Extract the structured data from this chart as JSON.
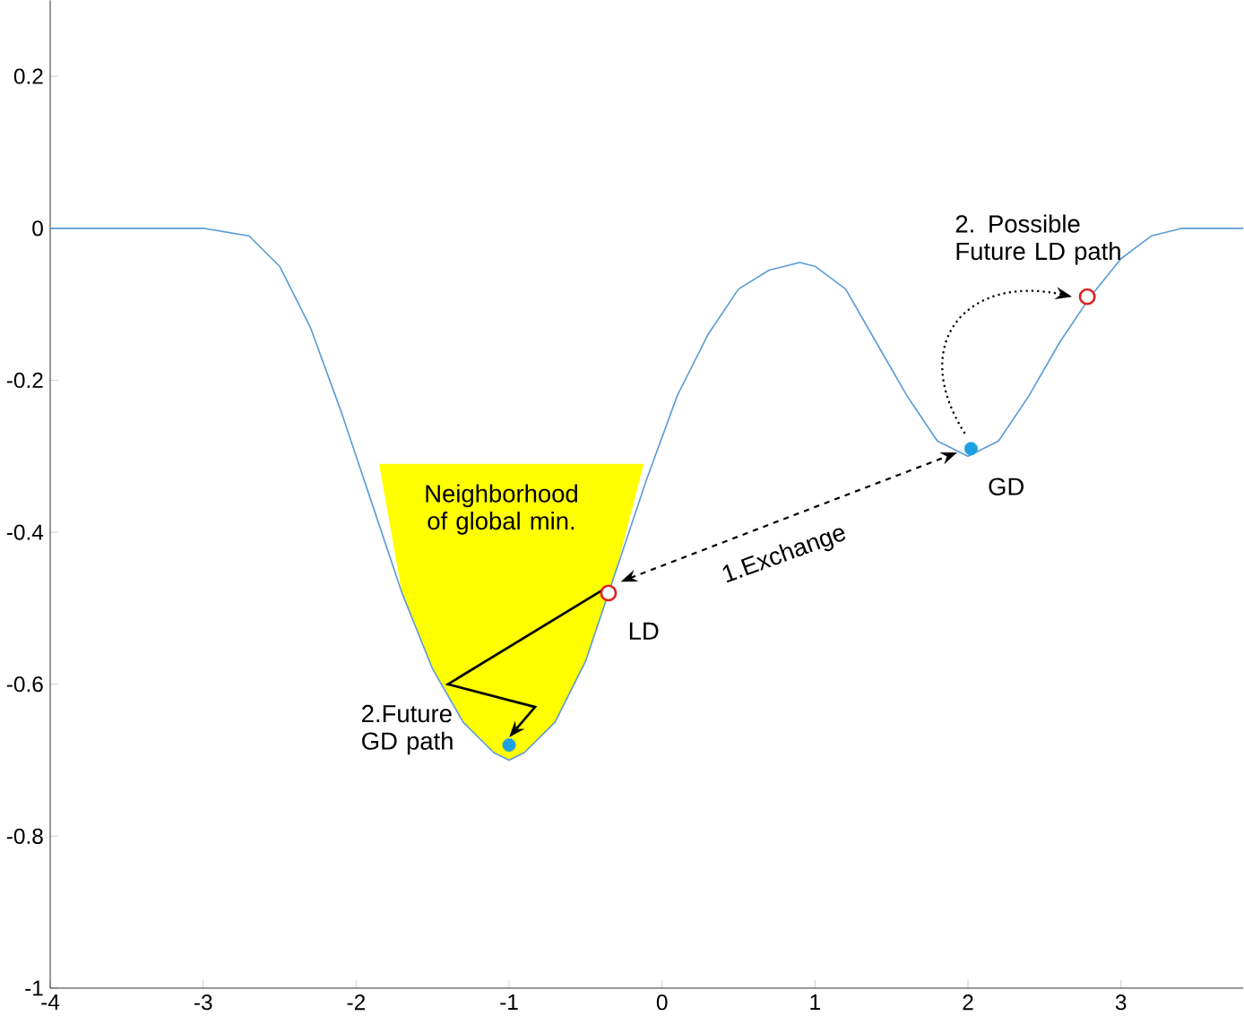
{
  "chart_data": {
    "type": "line",
    "xlim": [
      -4,
      3.8
    ],
    "ylim": [
      -1,
      0.3
    ],
    "xticks": [
      -4,
      -3,
      -2,
      -1,
      0,
      1,
      2,
      3
    ],
    "yticks": [
      -1,
      -0.8,
      -0.6,
      -0.4,
      -0.2,
      0,
      0.2
    ],
    "grid": false,
    "series": [
      {
        "type": "area",
        "color": "#ffff00",
        "x": [
          -1.85,
          -1.7,
          -1.5,
          -1.3,
          -1.1,
          -1.0,
          -0.9,
          -0.7,
          -0.5,
          -0.3,
          -0.12
        ],
        "values": [
          -0.31,
          -0.48,
          -0.58,
          -0.65,
          -0.69,
          -0.7,
          -0.69,
          -0.65,
          -0.57,
          -0.45,
          -0.31
        ]
      },
      {
        "color": "#5b9bd5",
        "x": [
          -4,
          -3,
          -2.7,
          -2.5,
          -2.3,
          -2.1,
          -1.9,
          -1.7,
          -1.5,
          -1.3,
          -1.1,
          -1.0,
          -0.9,
          -0.7,
          -0.5,
          -0.3,
          -0.1,
          0.1,
          0.3,
          0.5,
          0.7,
          0.9,
          1.0,
          1.2,
          1.4,
          1.6,
          1.8,
          2.0,
          2.2,
          2.4,
          2.6,
          2.8,
          3.0,
          3.2,
          3.4,
          3.8
        ],
        "values": [
          0,
          0,
          -0.01,
          -0.05,
          -0.13,
          -0.24,
          -0.36,
          -0.48,
          -0.58,
          -0.65,
          -0.69,
          -0.7,
          -0.69,
          -0.65,
          -0.57,
          -0.45,
          -0.33,
          -0.22,
          -0.14,
          -0.08,
          -0.055,
          -0.045,
          -0.05,
          -0.08,
          -0.15,
          -0.22,
          -0.28,
          -0.3,
          -0.28,
          -0.22,
          -0.15,
          -0.09,
          -0.04,
          -0.01,
          0,
          0
        ]
      },
      {
        "type": "scatter",
        "marker": "circle",
        "color": "#1fa0e0",
        "x": [
          -1.0,
          2.02
        ],
        "values": [
          -0.68,
          -0.29
        ]
      },
      {
        "type": "scatter",
        "marker": "circle",
        "color": "#e02020",
        "x": [
          -0.35,
          2.78
        ],
        "values": [
          -0.48,
          -0.09
        ]
      }
    ],
    "annotations": [
      "Neighborhood of global min.",
      "LD",
      "1.Exchange",
      "GD",
      "2. Possible Future LD path",
      "2.Future GD path"
    ]
  }
}
